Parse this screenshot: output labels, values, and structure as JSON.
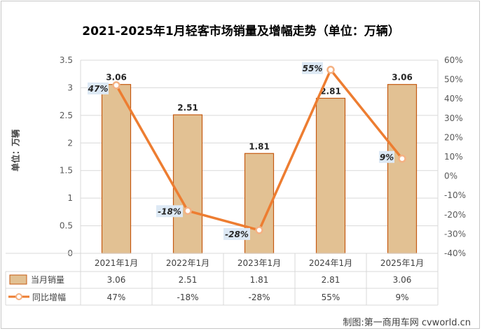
{
  "title": "2021-2025年1月轻客市场销量及增幅走势（单位：万辆）",
  "source": "制图:第一商用车网 cvworld.cn",
  "chart_data": {
    "type": "bar",
    "categories": [
      "2021年1月",
      "2022年1月",
      "2023年1月",
      "2024年1月",
      "2025年1月"
    ],
    "ylabel": "单位：万辆",
    "ylim": [
      0,
      3.5
    ],
    "y_ticks": [
      "0",
      "0.5",
      "1",
      "1.5",
      "2",
      "2.5",
      "3",
      "3.5"
    ],
    "y2lim": [
      -40,
      60
    ],
    "y2_ticks": [
      "-40%",
      "-30%",
      "-20%",
      "-10%",
      "0%",
      "10%",
      "20%",
      "30%",
      "40%",
      "50%",
      "60%"
    ],
    "grid": true,
    "legend": "table-below",
    "series": [
      {
        "name": "当月销量",
        "type": "bar",
        "axis": "left",
        "values": [
          3.06,
          2.51,
          1.81,
          2.81,
          3.06
        ],
        "labels": [
          "3.06",
          "2.51",
          "1.81",
          "2.81",
          "3.06"
        ],
        "color": "#e2c193",
        "edge_color": "#c55a11"
      },
      {
        "name": "同比增幅",
        "type": "line",
        "axis": "right",
        "values": [
          47,
          -18,
          -28,
          55,
          9
        ],
        "labels": [
          "47%",
          "-18%",
          "-28%",
          "55%",
          "9%"
        ],
        "color": "#ed7d31",
        "marker_color": "#f4b183"
      }
    ]
  }
}
